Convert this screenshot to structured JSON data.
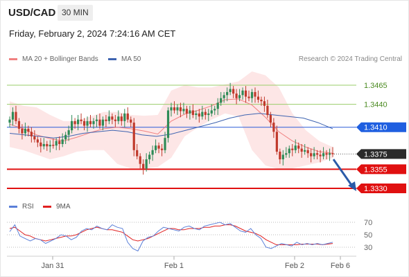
{
  "header": {
    "pair": "USD/CAD",
    "timeframe": "30 MIN",
    "date": "Friday, February 2, 2024 7:24:16 AM CET"
  },
  "legend": {
    "ma20": "MA 20 + Bollinger Bands",
    "ma50": "MA 50",
    "credit": "Research © 2024 Trading Central",
    "ma20_color": "#f08080",
    "ma50_color": "#3d63b0"
  },
  "rsi_legend": {
    "rsi": "RSI",
    "ma": "9MA",
    "rsi_color": "#5a7fd8",
    "ma_color": "#e02020"
  },
  "chart_data": {
    "type": "candlestick",
    "y_range": [
      1.331,
      1.351
    ],
    "x_ticks": [
      "Jan 31",
      "Feb 1",
      "Feb 2",
      "Feb 6"
    ],
    "levels": [
      {
        "value": 1.3465,
        "label": "1.3465",
        "style": "resistance-green"
      },
      {
        "value": 1.344,
        "label": "1.3440",
        "style": "resistance-green"
      },
      {
        "value": 1.341,
        "label": "1.3410",
        "style": "pivot-blue"
      },
      {
        "value": 1.3375,
        "label": "1.3375",
        "style": "last-price"
      },
      {
        "value": 1.3355,
        "label": "1.3355",
        "style": "support-red"
      },
      {
        "value": 1.333,
        "label": "1.3330",
        "style": "support-red"
      }
    ],
    "close_path": [
      1.342,
      1.343,
      1.3418,
      1.3408,
      1.3402,
      1.3408,
      1.3404,
      1.3398,
      1.3394,
      1.339,
      1.3385,
      1.3388,
      1.3385,
      1.3387,
      1.3386,
      1.3392,
      1.3388,
      1.3394,
      1.34,
      1.3406,
      1.3418,
      1.3414,
      1.342,
      1.3418,
      1.3412,
      1.3418,
      1.3414,
      1.3418,
      1.342,
      1.3412,
      1.342,
      1.3418,
      1.3424,
      1.342,
      1.3418,
      1.3424,
      1.3418,
      1.3428,
      1.342,
      1.3416,
      1.338,
      1.3372,
      1.3362,
      1.3356,
      1.3368,
      1.3374,
      1.338,
      1.3386,
      1.3382,
      1.338,
      1.3396,
      1.3432,
      1.3436,
      1.3432,
      1.3436,
      1.3431,
      1.3434,
      1.3428,
      1.3432,
      1.3426,
      1.3428,
      1.3424,
      1.343,
      1.3426,
      1.3428,
      1.3432,
      1.3434,
      1.3442,
      1.3448,
      1.3452,
      1.3456,
      1.346,
      1.3454,
      1.3448,
      1.3452,
      1.3458,
      1.345,
      1.3448,
      1.3456,
      1.345,
      1.3446,
      1.3444,
      1.3438,
      1.3426,
      1.3416,
      1.3404,
      1.3378,
      1.3368,
      1.3374,
      1.3376,
      1.3382,
      1.338,
      1.3386,
      1.3382,
      1.3378,
      1.338,
      1.3376,
      1.3372,
      1.3376,
      1.3374,
      1.3372,
      1.3376,
      1.3374,
      1.3376,
      1.3375
    ],
    "ma20_path": [
      1.3414,
      1.3408,
      1.34,
      1.3395,
      1.3392,
      1.3397,
      1.3403,
      1.3408,
      1.341,
      1.3408,
      1.3405,
      1.3401,
      1.3418,
      1.3427,
      1.3432,
      1.3438,
      1.3446,
      1.3447,
      1.3439,
      1.3423,
      1.3404,
      1.3392,
      1.3384,
      1.3378,
      1.3376
    ],
    "bb_upper": [
      1.3444,
      1.3438,
      1.3436,
      1.3426,
      1.3418,
      1.3418,
      1.3424,
      1.343,
      1.343,
      1.3426,
      1.3425,
      1.3426,
      1.3458,
      1.3465,
      1.3462,
      1.3462,
      1.3466,
      1.347,
      1.3483,
      1.3478,
      1.3462,
      1.3428,
      1.3406,
      1.3392,
      1.3384
    ],
    "bb_lower": [
      1.3384,
      1.338,
      1.3374,
      1.3368,
      1.3372,
      1.3378,
      1.338,
      1.338,
      1.3362,
      1.3356,
      1.3356,
      1.3358,
      1.337,
      1.3398,
      1.341,
      1.342,
      1.3428,
      1.3424,
      1.338,
      1.336,
      1.3355,
      1.3356,
      1.336,
      1.3364,
      1.337
    ],
    "ma50_path": [
      1.3402,
      1.34,
      1.3398,
      1.3396,
      1.3398,
      1.3402,
      1.3404,
      1.3406,
      1.3404,
      1.34,
      1.3398,
      1.3401,
      1.3406,
      1.3411,
      1.3416,
      1.3422,
      1.3426,
      1.3428,
      1.3426,
      1.3424,
      1.3422,
      1.3416,
      1.3408
    ],
    "forecast_arrow": {
      "from": 1.3368,
      "to": 1.333
    },
    "rsi": {
      "y_range": [
        20,
        80
      ],
      "ticks": [
        70,
        50,
        30
      ],
      "rsi_path": [
        55,
        66,
        48,
        44,
        40,
        44,
        42,
        36,
        40,
        44,
        50,
        48,
        42,
        46,
        56,
        60,
        58,
        64,
        60,
        58,
        66,
        62,
        60,
        38,
        28,
        24,
        40,
        46,
        48,
        56,
        62,
        60,
        58,
        56,
        62,
        64,
        60,
        58,
        64,
        66,
        68,
        70,
        66,
        68,
        62,
        56,
        54,
        60,
        50,
        44,
        30,
        28,
        32,
        36,
        34,
        32,
        38,
        34,
        36,
        34,
        36,
        34,
        36,
        38
      ],
      "ma_path": [
        60,
        62,
        56,
        50,
        48,
        44,
        42,
        40,
        42,
        44,
        46,
        48,
        48,
        50,
        54,
        58,
        60,
        62,
        60,
        58,
        58,
        56,
        54,
        48,
        42,
        40,
        42,
        44,
        48,
        52,
        56,
        60,
        60,
        58,
        58,
        60,
        60,
        60,
        62,
        62,
        64,
        64,
        66,
        66,
        64,
        60,
        56,
        54,
        52,
        48,
        42,
        38,
        34,
        34,
        34,
        34,
        34,
        35,
        35,
        35,
        35,
        34,
        35,
        36
      ]
    }
  }
}
